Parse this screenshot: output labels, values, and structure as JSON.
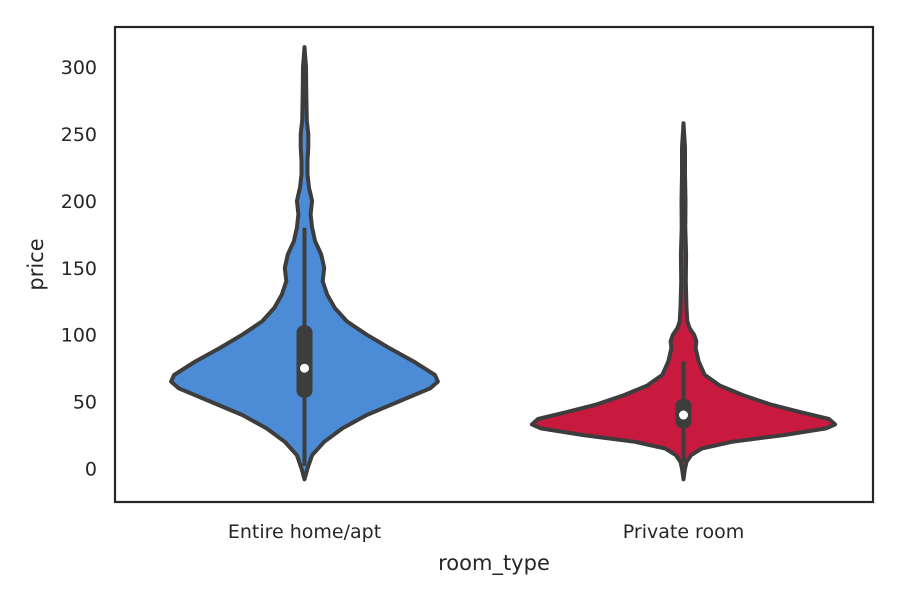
{
  "chart_data": {
    "type": "violin",
    "xlabel": "room_type",
    "ylabel": "price",
    "ylim": [
      -25,
      330
    ],
    "yticks": [
      0,
      50,
      100,
      150,
      200,
      250,
      300
    ],
    "grid": false,
    "legend": "none",
    "categories": [
      "Entire home/apt",
      "Private room"
    ],
    "colors": [
      "#4c8bd6",
      "#c8193f"
    ],
    "violins": [
      {
        "category": "Entire home/apt",
        "min": -8,
        "max": 315,
        "q1": 53,
        "median": 75,
        "q3": 107,
        "whisker_low": 2,
        "whisker_high": 180,
        "density": [
          [
            -8,
            0.0
          ],
          [
            0,
            0.02
          ],
          [
            10,
            0.05
          ],
          [
            20,
            0.13
          ],
          [
            30,
            0.25
          ],
          [
            40,
            0.41
          ],
          [
            50,
            0.62
          ],
          [
            60,
            0.83
          ],
          [
            65,
            0.88
          ],
          [
            70,
            0.86
          ],
          [
            80,
            0.72
          ],
          [
            90,
            0.56
          ],
          [
            100,
            0.41
          ],
          [
            110,
            0.28
          ],
          [
            120,
            0.2
          ],
          [
            130,
            0.15
          ],
          [
            140,
            0.12
          ],
          [
            150,
            0.13
          ],
          [
            160,
            0.11
          ],
          [
            170,
            0.07
          ],
          [
            180,
            0.05
          ],
          [
            190,
            0.04
          ],
          [
            200,
            0.05
          ],
          [
            210,
            0.03
          ],
          [
            220,
            0.02
          ],
          [
            230,
            0.02
          ],
          [
            240,
            0.025
          ],
          [
            250,
            0.025
          ],
          [
            260,
            0.015
          ],
          [
            280,
            0.012
          ],
          [
            300,
            0.01
          ],
          [
            315,
            0.0
          ]
        ]
      },
      {
        "category": "Private room",
        "min": -8,
        "max": 258,
        "q1": 30,
        "median": 40,
        "q3": 52,
        "whisker_low": 5,
        "whisker_high": 80,
        "density": [
          [
            -8,
            0.0
          ],
          [
            0,
            0.01
          ],
          [
            5,
            0.02
          ],
          [
            10,
            0.05
          ],
          [
            15,
            0.12
          ],
          [
            20,
            0.32
          ],
          [
            25,
            0.66
          ],
          [
            30,
            0.94
          ],
          [
            33,
            1.0
          ],
          [
            37,
            0.96
          ],
          [
            42,
            0.78
          ],
          [
            48,
            0.57
          ],
          [
            55,
            0.39
          ],
          [
            62,
            0.24
          ],
          [
            70,
            0.14
          ],
          [
            80,
            0.1
          ],
          [
            90,
            0.08
          ],
          [
            95,
            0.085
          ],
          [
            100,
            0.07
          ],
          [
            105,
            0.04
          ],
          [
            110,
            0.025
          ],
          [
            120,
            0.02
          ],
          [
            140,
            0.015
          ],
          [
            160,
            0.017
          ],
          [
            180,
            0.012
          ],
          [
            200,
            0.013
          ],
          [
            220,
            0.01
          ],
          [
            240,
            0.01
          ],
          [
            258,
            0.0
          ]
        ]
      }
    ]
  }
}
